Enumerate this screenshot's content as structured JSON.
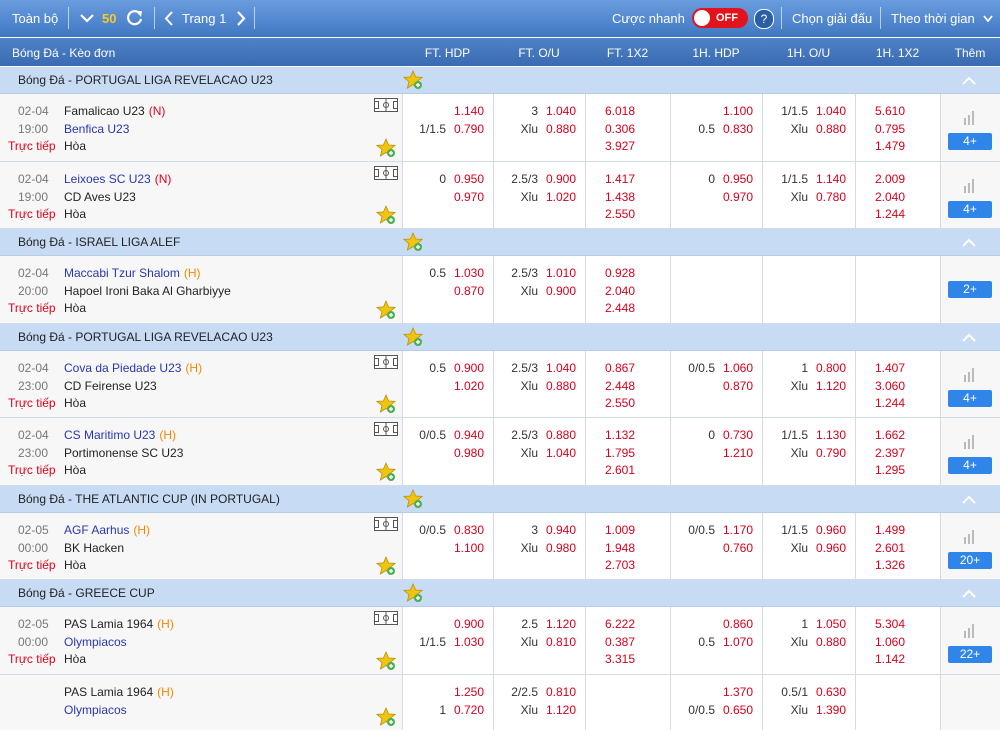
{
  "toolbar": {
    "all": "Toàn bộ",
    "count": "50",
    "page": "Trang 1",
    "quick": "Cược nhanh",
    "toggle": "OFF",
    "help": "?",
    "choose": "Chọn giải đấu",
    "sort": "Theo thời gian"
  },
  "header": [
    "Bóng Đá - Kèo đơn",
    "FT. HDP",
    "FT. O/U",
    "FT. 1X2",
    "1H. HDP",
    "1H. O/U",
    "1H. 1X2",
    "Thêm"
  ],
  "sections": [
    {
      "league": "Bóng Đá - PORTUGAL LIGA REVELACAO U23",
      "matches": [
        {
          "date": "02-04",
          "time": "19:00",
          "status": "Trực tiếp",
          "home": {
            "name": "Famalicao U23",
            "tag": "(N)",
            "color": "#222222"
          },
          "away": {
            "name": "Benfica U23",
            "color": "#2a36b0"
          },
          "draw": "Hòa",
          "ft_hdp": [
            {
              "odds": "1.140"
            },
            {
              "line": "1/1.5",
              "odds": "0.790"
            }
          ],
          "ft_ou": [
            {
              "line": "3",
              "odds": "1.040"
            },
            {
              "line": "Xỉu",
              "odds": "0.880"
            }
          ],
          "ft_1x2": [
            "6.018",
            "0.306",
            "3.927"
          ],
          "h1_hdp": [
            {
              "odds": "1.100"
            },
            {
              "line": "0.5",
              "odds": "0.830"
            }
          ],
          "h1_ou": [
            {
              "line": "1/1.5",
              "odds": "1.040"
            },
            {
              "line": "Xỉu",
              "odds": "0.880"
            }
          ],
          "h1_1x2": [
            "5.610",
            "0.795",
            "1.479"
          ],
          "more": "4+"
        },
        {
          "date": "02-04",
          "time": "19:00",
          "status": "Trực tiếp",
          "home": {
            "name": "Leixoes SC U23",
            "tag": "(N)",
            "color": "#2a36b0"
          },
          "away": {
            "name": "CD Aves U23",
            "color": "#222222"
          },
          "draw": "Hòa",
          "ft_hdp": [
            {
              "line": "0",
              "odds": "0.950"
            },
            {
              "odds": "0.970"
            }
          ],
          "ft_ou": [
            {
              "line": "2.5/3",
              "odds": "0.900"
            },
            {
              "line": "Xỉu",
              "odds": "1.020"
            }
          ],
          "ft_1x2": [
            "1.417",
            "1.438",
            "2.550"
          ],
          "h1_hdp": [
            {
              "line": "0",
              "odds": "0.950"
            },
            {
              "odds": "0.970"
            }
          ],
          "h1_ou": [
            {
              "line": "1/1.5",
              "odds": "1.140"
            },
            {
              "line": "Xỉu",
              "odds": "0.780"
            }
          ],
          "h1_1x2": [
            "2.009",
            "2.040",
            "1.244"
          ],
          "more": "4+"
        }
      ]
    },
    {
      "league": "Bóng Đá - ISRAEL LIGA ALEF",
      "matches": [
        {
          "date": "02-04",
          "time": "20:00",
          "status": "Trực tiếp",
          "home": {
            "name": "Maccabi Tzur Shalom",
            "tag": "(H)",
            "color": "#2a36b0"
          },
          "away": {
            "name": "Hapoel Ironi Baka Al Gharbiyye",
            "color": "#222222"
          },
          "draw": "Hòa",
          "ft_hdp": [
            {
              "line": "0.5",
              "odds": "1.030"
            },
            {
              "odds": "0.870"
            }
          ],
          "ft_ou": [
            {
              "line": "2.5/3",
              "odds": "1.010"
            },
            {
              "line": "Xỉu",
              "odds": "0.900"
            }
          ],
          "ft_1x2": [
            "0.928",
            "2.040",
            "2.448"
          ],
          "more": "2+"
        }
      ]
    },
    {
      "league": "Bóng Đá - PORTUGAL LIGA REVELACAO U23",
      "matches": [
        {
          "date": "02-04",
          "time": "23:00",
          "status": "Trực tiếp",
          "home": {
            "name": "Cova da Piedade U23",
            "tag": "(H)",
            "color": "#2a36b0"
          },
          "away": {
            "name": "CD Feirense U23",
            "color": "#222222"
          },
          "draw": "Hòa",
          "ft_hdp": [
            {
              "line": "0.5",
              "odds": "0.900"
            },
            {
              "odds": "1.020"
            }
          ],
          "ft_ou": [
            {
              "line": "2.5/3",
              "odds": "1.040"
            },
            {
              "line": "Xỉu",
              "odds": "0.880"
            }
          ],
          "ft_1x2": [
            "0.867",
            "2.448",
            "2.550"
          ],
          "h1_hdp": [
            {
              "line": "0/0.5",
              "odds": "1.060"
            },
            {
              "odds": "0.870"
            }
          ],
          "h1_ou": [
            {
              "line": "1",
              "odds": "0.800"
            },
            {
              "line": "Xỉu",
              "odds": "1.120"
            }
          ],
          "h1_1x2": [
            "1.407",
            "3.060",
            "1.244"
          ],
          "more": "4+"
        },
        {
          "date": "02-04",
          "time": "23:00",
          "status": "Trực tiếp",
          "home": {
            "name": "CS Maritimo U23",
            "tag": "(H)",
            "color": "#2a36b0"
          },
          "away": {
            "name": "Portimonense SC U23",
            "color": "#222222"
          },
          "draw": "Hòa",
          "ft_hdp": [
            {
              "line": "0/0.5",
              "odds": "0.940"
            },
            {
              "odds": "0.980"
            }
          ],
          "ft_ou": [
            {
              "line": "2.5/3",
              "odds": "0.880"
            },
            {
              "line": "Xỉu",
              "odds": "1.040"
            }
          ],
          "ft_1x2": [
            "1.132",
            "1.795",
            "2.601"
          ],
          "h1_hdp": [
            {
              "line": "0",
              "odds": "0.730"
            },
            {
              "odds": "1.210"
            }
          ],
          "h1_ou": [
            {
              "line": "1/1.5",
              "odds": "1.130"
            },
            {
              "line": "Xỉu",
              "odds": "0.790"
            }
          ],
          "h1_1x2": [
            "1.662",
            "2.397",
            "1.295"
          ],
          "more": "4+"
        }
      ]
    },
    {
      "league": "Bóng Đá - THE ATLANTIC CUP (IN PORTUGAL)",
      "matches": [
        {
          "date": "02-05",
          "time": "00:00",
          "status": "Trực tiếp",
          "home": {
            "name": "AGF Aarhus",
            "tag": "(H)",
            "color": "#2a36b0"
          },
          "away": {
            "name": "BK Hacken",
            "color": "#222222"
          },
          "draw": "Hòa",
          "ft_hdp": [
            {
              "line": "0/0.5",
              "odds": "0.830"
            },
            {
              "odds": "1.100"
            }
          ],
          "ft_ou": [
            {
              "line": "3",
              "odds": "0.940"
            },
            {
              "line": "Xỉu",
              "odds": "0.980"
            }
          ],
          "ft_1x2": [
            "1.009",
            "1.948",
            "2.703"
          ],
          "h1_hdp": [
            {
              "line": "0/0.5",
              "odds": "1.170"
            },
            {
              "odds": "0.760"
            }
          ],
          "h1_ou": [
            {
              "line": "1/1.5",
              "odds": "0.960"
            },
            {
              "line": "Xỉu",
              "odds": "0.960"
            }
          ],
          "h1_1x2": [
            "1.499",
            "2.601",
            "1.326"
          ],
          "more": "20+"
        }
      ]
    },
    {
      "league": "Bóng Đá - GREECE CUP",
      "matches": [
        {
          "date": "02-05",
          "time": "00:00",
          "status": "Trực tiếp",
          "home": {
            "name": "PAS Lamia 1964",
            "tag": "(H)",
            "color": "#222222"
          },
          "away": {
            "name": "Olympiacos",
            "color": "#2a36b0"
          },
          "draw": "Hòa",
          "ft_hdp": [
            {
              "odds": "0.900"
            },
            {
              "line": "1/1.5",
              "odds": "1.030"
            }
          ],
          "ft_ou": [
            {
              "line": "2.5",
              "odds": "1.120"
            },
            {
              "line": "Xỉu",
              "odds": "0.810"
            }
          ],
          "ft_1x2": [
            "6.222",
            "0.387",
            "3.315"
          ],
          "h1_hdp": [
            {
              "odds": "0.860"
            },
            {
              "line": "0.5",
              "odds": "1.070"
            }
          ],
          "h1_ou": [
            {
              "line": "1",
              "odds": "1.050"
            },
            {
              "line": "Xỉu",
              "odds": "0.880"
            }
          ],
          "h1_1x2": [
            "5.304",
            "1.060",
            "1.142"
          ],
          "more": "22+"
        },
        {
          "home": {
            "name": "PAS Lamia 1964",
            "tag": "(H)",
            "color": "#222222"
          },
          "away": {
            "name": "Olympiacos",
            "color": "#2a36b0"
          },
          "ft_hdp": [
            {
              "odds": "1.250"
            },
            {
              "line": "1",
              "odds": "0.720"
            }
          ],
          "ft_ou": [
            {
              "line": "2/2.5",
              "odds": "0.810"
            },
            {
              "line": "Xỉu",
              "odds": "1.120"
            }
          ],
          "h1_hdp": [
            {
              "odds": "1.370"
            },
            {
              "line": "0/0.5",
              "odds": "0.650"
            }
          ],
          "h1_ou": [
            {
              "line": "0.5/1",
              "odds": "0.630"
            },
            {
              "line": "Xỉu",
              "odds": "1.390"
            }
          ]
        }
      ]
    }
  ]
}
